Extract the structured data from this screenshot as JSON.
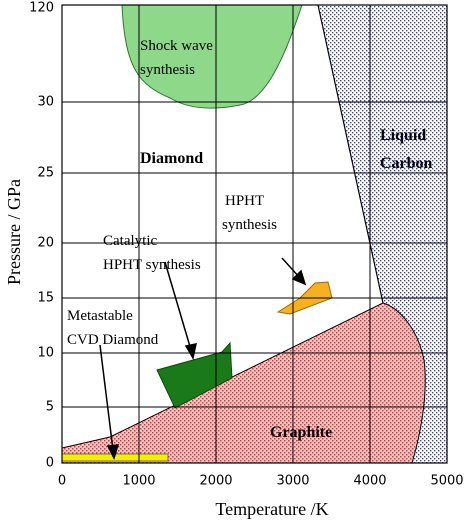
{
  "chart_data": {
    "type": "phase-diagram",
    "xlabel": "Temperature /K",
    "ylabel": "Pressure / GPa",
    "xlim": [
      0,
      5000
    ],
    "xticks": [
      0,
      1000,
      2000,
      3000,
      4000,
      5000
    ],
    "yticks": [
      0,
      5,
      10,
      15,
      20,
      25,
      30,
      120
    ],
    "regions": {
      "shock_wave": [
        "Shock wave",
        "synthesis"
      ],
      "diamond": "Diamond",
      "liquid": [
        "Liquid",
        "Carbon"
      ],
      "hpht": [
        "HPHT",
        "synthesis"
      ],
      "catalytic": [
        "Catalytic",
        "HPHT synthesis"
      ],
      "cvd": [
        "Metastable",
        "CVD Diamond"
      ],
      "graphite": "Graphite"
    }
  }
}
